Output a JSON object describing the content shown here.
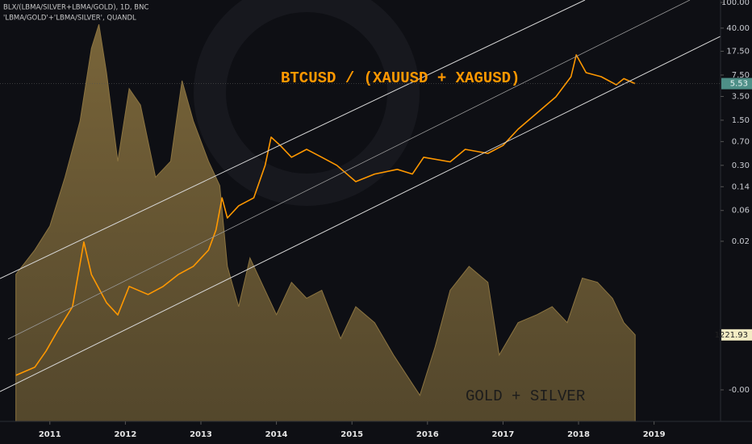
{
  "chart_data": {
    "type": "line",
    "header": [
      "BLX/(LBMA/SILVER+LBMA/GOLD), 1D, BNC",
      "'LBMA/GOLD'+'LBMA/SILVER', QUANDL"
    ],
    "annotations": [
      "BTCUSD / (XAUUSD + XAGUSD)",
      "GOLD + SILVER"
    ],
    "yscale": "log",
    "xlim": [
      2010.34,
      2019.88
    ],
    "xticks": [
      2011,
      2012,
      2013,
      2014,
      2015,
      2016,
      2017,
      2018,
      2019
    ],
    "ylim": [
      3.25e-05,
      109
    ],
    "yticks": [
      {
        "value": 100,
        "label": "100.00"
      },
      {
        "value": 40,
        "label": "40.00"
      },
      {
        "value": 17.5,
        "label": "17.50"
      },
      {
        "value": 7.5,
        "label": "7.50"
      },
      {
        "value": 3.5,
        "label": "3.50"
      },
      {
        "value": 1.5,
        "label": "1.50"
      },
      {
        "value": 0.7,
        "label": "0.70"
      },
      {
        "value": 0.3,
        "label": "0.30"
      },
      {
        "value": 0.14,
        "label": "0.14"
      },
      {
        "value": 0.06,
        "label": "0.06"
      },
      {
        "value": 0.02,
        "label": "0.02"
      },
      {
        "value": 0.0001,
        "label": "-0.00"
      }
    ],
    "y2lim": [
      1016,
      2019
    ],
    "series": [
      {
        "name": "BTCUSD / (XAUUSD + XAGUSD)",
        "color": "#ff9800",
        "kind": "line",
        "x": [
          2010.55,
          2010.8,
          2010.95,
          2011.1,
          2011.3,
          2011.45,
          2011.55,
          2011.75,
          2011.9,
          2012.05,
          2012.3,
          2012.5,
          2012.7,
          2012.9,
          2013.1,
          2013.2,
          2013.28,
          2013.35,
          2013.5,
          2013.7,
          2013.85,
          2013.93,
          2014.05,
          2014.2,
          2014.4,
          2014.6,
          2014.8,
          2015.05,
          2015.3,
          2015.6,
          2015.8,
          2015.95,
          2016.3,
          2016.5,
          2016.8,
          2017.0,
          2017.2,
          2017.45,
          2017.7,
          2017.9,
          2017.97,
          2018.1,
          2018.3,
          2018.5,
          2018.6,
          2018.75
        ],
        "values": [
          0.000168,
          0.000224,
          0.0004,
          0.00081,
          0.00195,
          0.0195,
          0.0061,
          0.00224,
          0.00145,
          0.004,
          0.003,
          0.004,
          0.0061,
          0.0082,
          0.0146,
          0.03,
          0.094,
          0.046,
          0.071,
          0.094,
          0.3,
          0.82,
          0.61,
          0.4,
          0.53,
          0.4,
          0.3,
          0.168,
          0.22,
          0.26,
          0.22,
          0.4,
          0.34,
          0.53,
          0.46,
          0.61,
          1.09,
          1.94,
          3.45,
          7.08,
          15.4,
          8.18,
          7.08,
          5.31,
          6.6,
          5.53
        ]
      },
      {
        "name": "GOLD + SILVER",
        "color": "#8c7440",
        "kind": "area",
        "axis": "y2",
        "x": [
          2010.55,
          2010.8,
          2011.0,
          2011.2,
          2011.4,
          2011.55,
          2011.65,
          2011.75,
          2011.9,
          2012.05,
          2012.2,
          2012.4,
          2012.6,
          2012.75,
          2012.9,
          2013.1,
          2013.25,
          2013.35,
          2013.5,
          2013.65,
          2013.8,
          2014.0,
          2014.2,
          2014.4,
          2014.6,
          2014.85,
          2015.05,
          2015.3,
          2015.55,
          2015.9,
          2016.1,
          2016.3,
          2016.55,
          2016.8,
          2016.95,
          2017.2,
          2017.45,
          2017.65,
          2017.85,
          2018.05,
          2018.25,
          2018.45,
          2018.6,
          2018.75
        ],
        "values": [
          1366,
          1424,
          1481,
          1597,
          1731,
          1904,
          1961,
          1846,
          1635,
          1808,
          1769,
          1597,
          1635,
          1827,
          1731,
          1635,
          1577,
          1385,
          1289,
          1405,
          1347,
          1270,
          1347,
          1309,
          1328,
          1213,
          1289,
          1251,
          1174,
          1078,
          1193,
          1328,
          1385,
          1347,
          1174,
          1251,
          1270,
          1289,
          1251,
          1357,
          1347,
          1309,
          1251,
          1221.93
        ]
      }
    ]
  }
}
